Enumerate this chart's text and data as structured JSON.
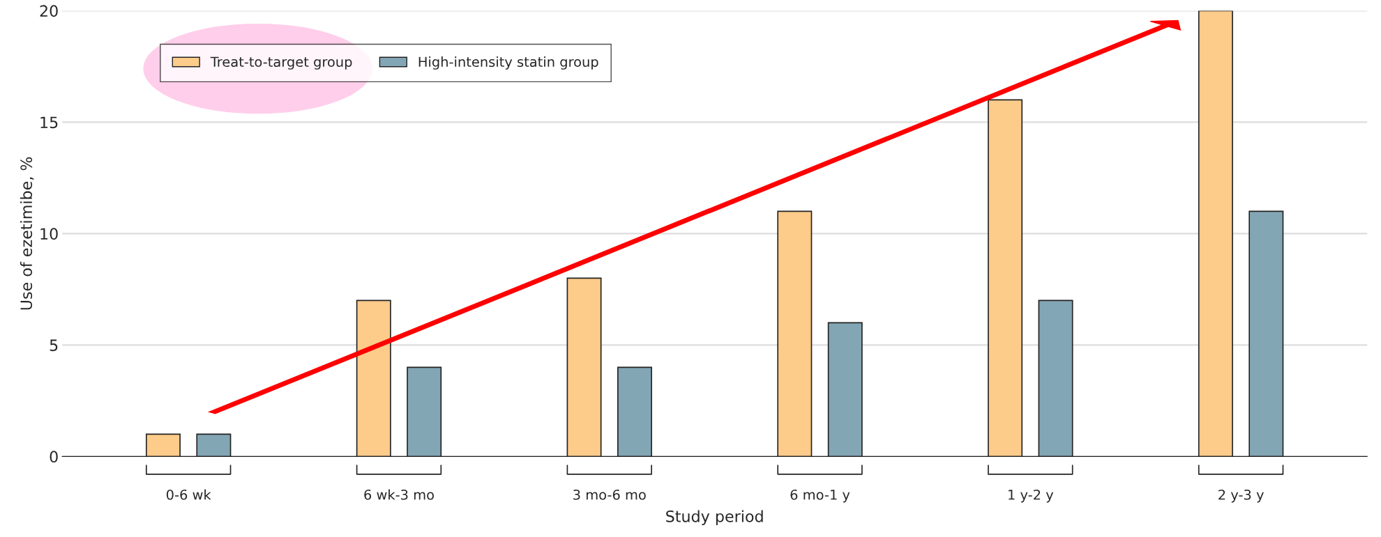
{
  "chart_data": {
    "type": "bar",
    "xlabel": "Study period",
    "ylabel": "Use of ezetimibe, %",
    "categories": [
      "0-6 wk",
      "6 wk-3 mo",
      "3 mo-6 mo",
      "6 mo-1 y",
      "1 y-2 y",
      "2 y-3 y"
    ],
    "series": [
      {
        "name": "Treat-to-target group",
        "color": "#fdcb8a",
        "values": [
          1,
          7,
          8,
          11,
          16,
          20
        ]
      },
      {
        "name": "High-intensity statin group",
        "color": "#83a6b5",
        "values": [
          1,
          4,
          4,
          6,
          7,
          11
        ]
      }
    ],
    "ylim": [
      0,
      20
    ],
    "yticks": [
      0,
      5,
      10,
      15,
      20
    ],
    "grid": "y",
    "legend": "top left"
  }
}
